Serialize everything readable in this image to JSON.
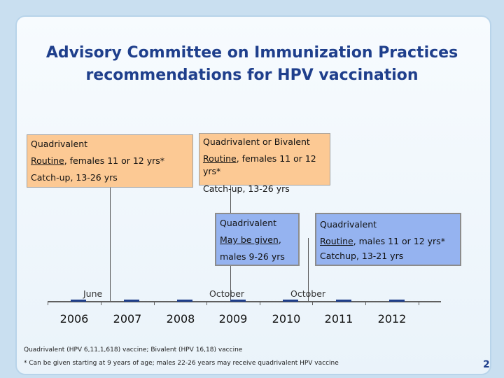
{
  "title": {
    "line1": "Advisory Committee on Immunization Practices",
    "line2": "recommendations for HPV vaccination"
  },
  "boxes": {
    "box2006": {
      "heading": "Quadrivalent",
      "routine_word": "Routine",
      "routine_rest": ", females 11 or 12 yrs*",
      "catchup": "Catch-up, 13-26 yrs"
    },
    "box2009": {
      "heading": "Quadrivalent or Bivalent",
      "routine_word": "Routine",
      "routine_rest": ", females 11 or 12",
      "routine_cont": "yrs*",
      "catchup": "Catch-up, 13-26 yrs"
    },
    "box2009b": {
      "heading": "Quadrivalent",
      "may_word": "May be given",
      "may_rest": ",",
      "males": "males 9-26 yrs"
    },
    "box2011": {
      "heading": "Quadrivalent",
      "routine_word": "Routine",
      "routine_rest": ", males 11 or 12  yrs*",
      "catchup": "Catchup, 13-21 yrs"
    }
  },
  "timeline": {
    "years": [
      "2006",
      "2007",
      "2008",
      "2009",
      "2010",
      "2011",
      "2012"
    ],
    "month_labels": {
      "june": "June",
      "october2009": "October",
      "october2011": "October"
    }
  },
  "footnotes": {
    "line1": "Quadrivalent (HPV 6,11,1,618) vaccine; Bivalent (HPV 16,18) vaccine",
    "line2": "* Can be given starting at 9 years of age; males 22-26 years may receive quadrivalent HPV vaccine"
  },
  "page_number": "2",
  "colors": {
    "title": "#1f3f8c",
    "orange_box": "#fcc994",
    "blue_box": "#95b3f0"
  }
}
